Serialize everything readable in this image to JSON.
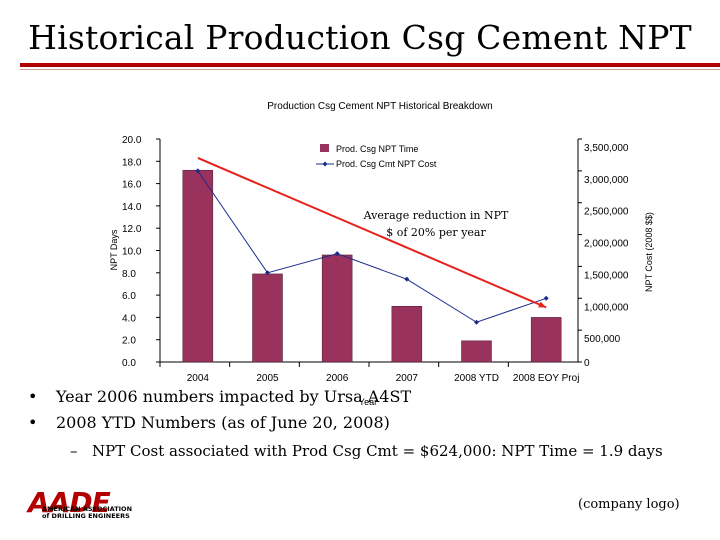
{
  "slide": {
    "title": "Historical Production Csg Cement NPT",
    "bullets": [
      "Year 2006 numbers impacted by Ursa A4ST",
      "2008 YTD Numbers (as of June 20, 2008)"
    ],
    "sub_bullet": "NPT Cost associated with Prod Csg Cmt = $624,000: NPT Time = 1.9 days",
    "bullet_symbol": "•",
    "sub_bullet_symbol": "–",
    "company_logo_text": "(company logo)",
    "logo": {
      "mark": "AADE",
      "subtext": "AMERICAN ASSOCIATION\nof DRILLING ENGINEERS"
    },
    "colors": {
      "title_rule": "#b30000",
      "bar": "#99335e",
      "cost_line": "#1a2c8c",
      "trend_line": "#e8201a"
    }
  },
  "chart_data": {
    "type": "bar",
    "title": "Production Csg Cement NPT Historical Breakdown",
    "categories": [
      "2004",
      "2005",
      "2006",
      "2007",
      "2008 YTD",
      "2008 EOY Proj"
    ],
    "xlabel": "Year",
    "ylabel": "NPT Days",
    "y2label": "NPT Cost (2008 $$)",
    "ylim": [
      0,
      20
    ],
    "y_ticks": [
      "0.0",
      "2.0",
      "4.0",
      "6.0",
      "8.0",
      "10.0",
      "12.0",
      "14.0",
      "16.0",
      "18.0",
      "20.0"
    ],
    "y2lim": [
      0,
      3500000
    ],
    "y2_ticks": [
      "0",
      "500,000",
      "1,000,000",
      "1,500,000",
      "2,000,000",
      "2,500,000",
      "3,000,000",
      "3,500,000"
    ],
    "series": [
      {
        "name": "Prod. Csg NPT Time",
        "type": "bar",
        "axis": "left",
        "values": [
          17.2,
          7.9,
          9.6,
          5.0,
          1.9,
          4.0
        ]
      },
      {
        "name": "Prod. Csg Cmt NPT Cost",
        "type": "line",
        "axis": "right",
        "values": [
          3000000,
          1400000,
          1700000,
          1300000,
          624000,
          1000000
        ]
      }
    ],
    "trend_line": {
      "from": {
        "category": "2004",
        "value": 18.3
      },
      "to": {
        "category": "2008 EOY Proj",
        "value": 4.9
      }
    },
    "annotation": "Average reduction in NPT $ of 20% per year",
    "legend_position": "top-center",
    "grid": false
  }
}
